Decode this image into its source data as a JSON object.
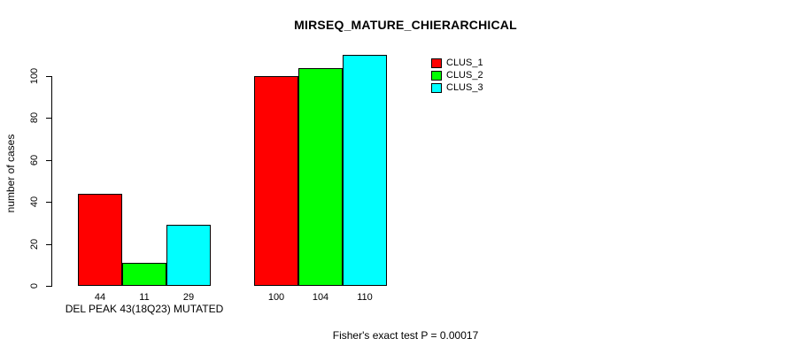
{
  "chart_data": {
    "type": "bar",
    "title": "MIRSEQ_MATURE_CHIERARCHICAL",
    "ylabel": "number of cases",
    "group_labels": [
      "DEL PEAK 43(18Q23) MUTATED",
      ""
    ],
    "series": [
      {
        "name": "CLUS_1",
        "color": "#FF0000",
        "values": [
          44,
          100
        ]
      },
      {
        "name": "CLUS_2",
        "color": "#00FF00",
        "values": [
          11,
          104
        ]
      },
      {
        "name": "CLUS_3",
        "color": "#00FFFF",
        "values": [
          29,
          110
        ]
      }
    ],
    "yticks": [
      0,
      20,
      40,
      60,
      80,
      100
    ],
    "ylim": [
      0,
      112
    ],
    "grid": false,
    "legend_position": "top-right",
    "show_values_below_bars": true,
    "footnote": "Fisher's exact test P = 0.00017"
  }
}
